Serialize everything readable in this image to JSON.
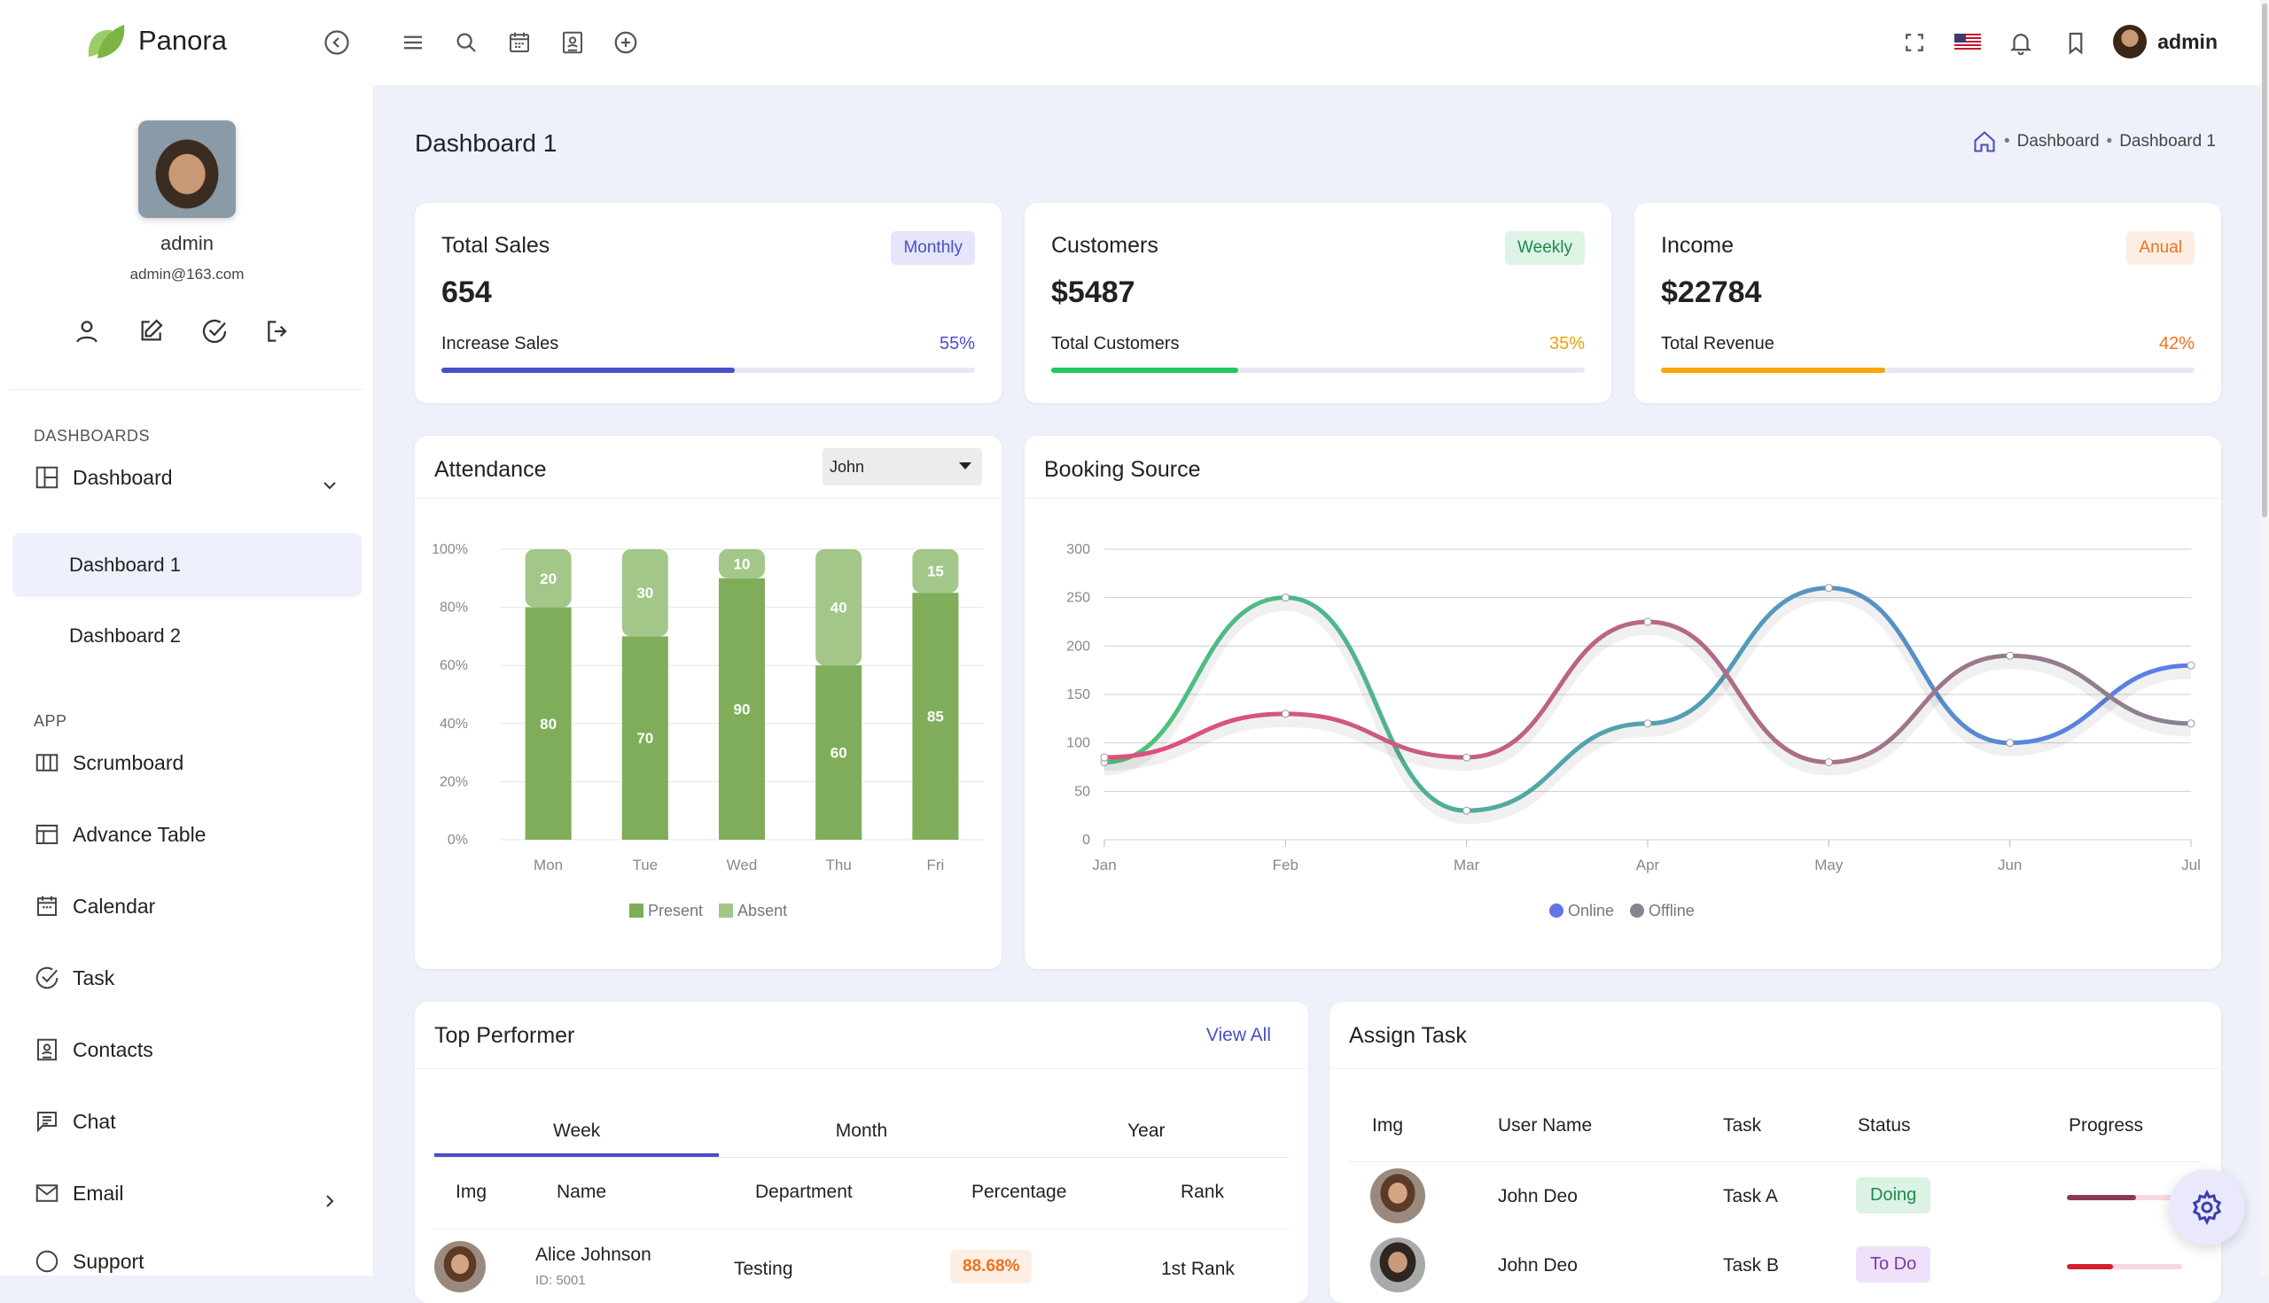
{
  "app": {
    "name": "Panora",
    "user": "admin"
  },
  "sidebar": {
    "profile": {
      "name": "admin",
      "email": "admin@163.com"
    },
    "section_dashboards": "DASHBOARDS",
    "section_app": "APP",
    "dashboard": "Dashboard",
    "dashboard_1": "Dashboard 1",
    "dashboard_2": "Dashboard 2",
    "items": [
      "Scrumboard",
      "Advance Table",
      "Calendar",
      "Task",
      "Contacts",
      "Chat",
      "Email",
      "Support"
    ]
  },
  "page": {
    "title": "Dashboard 1",
    "breadcrumb": [
      "Dashboard",
      "Dashboard 1"
    ]
  },
  "stats": [
    {
      "title": "Total Sales",
      "value": "654",
      "badge": "Monthly",
      "foot": "Increase Sales",
      "pct": "55%",
      "progress": 0.55,
      "badge_bg": "#e5e6fb",
      "badge_fg": "#4a4fc7",
      "bar": "#4a4fc7",
      "pct_color": "#4a4fc7"
    },
    {
      "title": "Customers",
      "value": "$5487",
      "badge": "Weekly",
      "foot": "Total Customers",
      "pct": "35%",
      "progress": 0.35,
      "badge_bg": "#ddf3e6",
      "badge_fg": "#1d8a4a",
      "bar": "#1ec95f",
      "pct_color": "#f29d0a"
    },
    {
      "title": "Income",
      "value": "$22784",
      "badge": "Anual",
      "foot": "Total Revenue",
      "pct": "42%",
      "progress": 0.42,
      "badge_bg": "#fdeee3",
      "badge_fg": "#f2711c",
      "bar": "#f6a80a",
      "pct_color": "#f2711c"
    }
  ],
  "attendance": {
    "title": "Attendance",
    "selected": "John"
  },
  "booking": {
    "title": "Booking Source"
  },
  "chart_data": [
    {
      "type": "bar",
      "title": "Attendance",
      "stacked": true,
      "categories": [
        "Mon",
        "Tue",
        "Wed",
        "Thu",
        "Fri"
      ],
      "series": [
        {
          "name": "Present",
          "values": [
            80,
            70,
            90,
            60,
            85
          ],
          "color": "#7fad5a"
        },
        {
          "name": "Absent",
          "values": [
            20,
            30,
            10,
            40,
            15
          ],
          "color": "#a3c789"
        }
      ],
      "ylim": [
        0,
        100
      ],
      "yticks": [
        "0%",
        "20%",
        "40%",
        "60%",
        "80%",
        "100%"
      ],
      "legend": "bottom",
      "grid": true
    },
    {
      "type": "line",
      "title": "Booking Source",
      "categories": [
        "Jan",
        "Feb",
        "Mar",
        "Apr",
        "May",
        "Jun",
        "Jul"
      ],
      "series": [
        {
          "name": "Online",
          "values": [
            80,
            250,
            30,
            120,
            260,
            100,
            180
          ],
          "colors": [
            "#4cc477",
            "#5b7ce8"
          ]
        },
        {
          "name": "Offline",
          "values": [
            85,
            130,
            85,
            225,
            80,
            190,
            120
          ],
          "colors": [
            "#e24d7b",
            "#8a8290"
          ]
        }
      ],
      "ylim": [
        0,
        300
      ],
      "yticks": [
        "0",
        "50",
        "100",
        "150",
        "200",
        "250",
        "300"
      ],
      "legend": "bottom",
      "legend_colors": [
        "#6274e6",
        "#8a8290"
      ],
      "grid": true
    }
  ],
  "top_performer": {
    "title": "Top Performer",
    "view_all": "View All",
    "tabs": [
      "Week",
      "Month",
      "Year"
    ],
    "headers": [
      "Img",
      "Name",
      "Department",
      "Percentage",
      "Rank"
    ],
    "rows": [
      {
        "name": "Alice Johnson",
        "id": "ID: 5001",
        "department": "Testing",
        "percentage": "88.68%",
        "rank": "1st Rank"
      }
    ]
  },
  "assign_task": {
    "title": "Assign Task",
    "headers": [
      "Img",
      "User Name",
      "Task",
      "Status",
      "Progress"
    ],
    "rows": [
      {
        "user": "John Deo",
        "task": "Task A",
        "status": "Doing",
        "progress": 0.6,
        "status_bg": "#dcf2e4",
        "status_fg": "#1d8a4a",
        "bar": "#8b3a55"
      },
      {
        "user": "John Deo",
        "task": "Task B",
        "status": "To Do",
        "progress": 0.4,
        "status_bg": "#efe1f7",
        "status_fg": "#7b3ca3",
        "bar": "#d5202f"
      }
    ]
  }
}
